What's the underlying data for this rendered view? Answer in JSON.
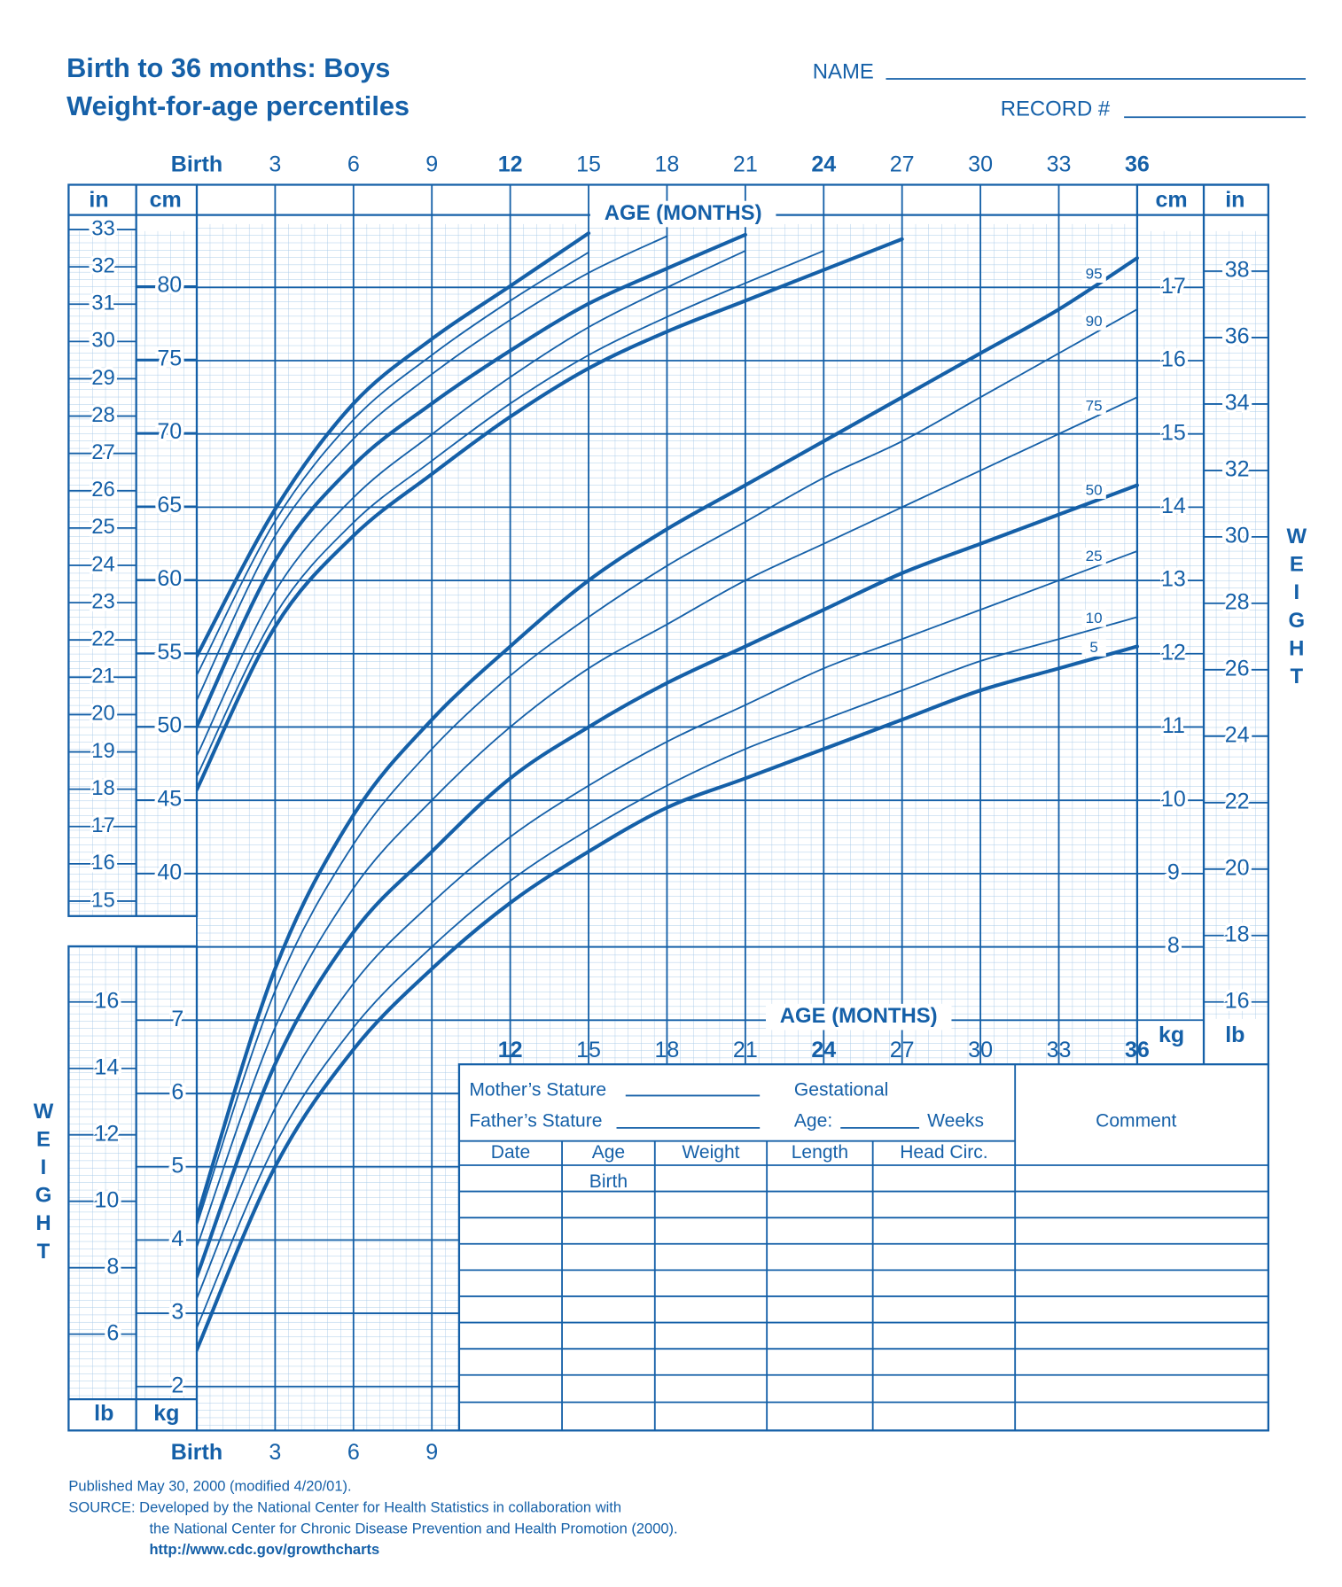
{
  "header": {
    "title": "Birth to 36 months: Boys",
    "subtitle": "Weight-for-age percentiles",
    "name": "NAME",
    "record": "RECORD #"
  },
  "units": {
    "in": "in",
    "cm": "cm",
    "kg": "kg",
    "lb": "lb"
  },
  "chart_data": [
    {
      "type": "line",
      "x_label": "AGE (MONTHS)",
      "y_label": "WEIGHT",
      "x": [
        0,
        3,
        6,
        9,
        12,
        15,
        18,
        21,
        24,
        27,
        30,
        33,
        36
      ],
      "xlim": [
        0,
        36
      ],
      "xticks": [
        {
          "value": 0,
          "label": "Birth"
        },
        3,
        6,
        9,
        12,
        15,
        18,
        21,
        24,
        27,
        30,
        33,
        36
      ],
      "ylim": [
        1.4,
        18.4
      ],
      "yticks": [
        2,
        3,
        4,
        5,
        6,
        7,
        8,
        9,
        10,
        11,
        12,
        13,
        14,
        15,
        16,
        17
      ],
      "y2lim": [
        3.1,
        40.6
      ],
      "y2ticks": [
        6,
        8,
        10,
        12,
        14,
        16,
        18,
        20,
        22,
        24,
        26,
        28,
        30,
        32,
        34,
        36,
        38
      ],
      "color": "#1560a8",
      "grid": true,
      "series": [
        {
          "name": "95",
          "values": [
            4.3,
            7.7,
            9.8,
            11.1,
            12.1,
            13.0,
            13.7,
            14.3,
            14.9,
            15.5,
            16.1,
            16.7,
            17.4
          ]
        },
        {
          "name": "90",
          "values": [
            4.2,
            7.4,
            9.4,
            10.7,
            11.7,
            12.5,
            13.2,
            13.8,
            14.4,
            14.9,
            15.5,
            16.1,
            16.7
          ]
        },
        {
          "name": "75",
          "values": [
            3.9,
            6.9,
            8.8,
            10.0,
            11.0,
            11.8,
            12.4,
            13.0,
            13.5,
            14.0,
            14.5,
            15.0,
            15.5
          ]
        },
        {
          "name": "50",
          "values": [
            3.5,
            6.4,
            8.2,
            9.3,
            10.3,
            11.0,
            11.6,
            12.1,
            12.6,
            13.1,
            13.5,
            13.9,
            14.3
          ]
        },
        {
          "name": "25",
          "values": [
            3.2,
            5.8,
            7.5,
            8.6,
            9.5,
            10.2,
            10.8,
            11.3,
            11.8,
            12.2,
            12.6,
            13.0,
            13.4
          ]
        },
        {
          "name": "10",
          "values": [
            2.8,
            5.3,
            6.9,
            8.0,
            8.9,
            9.6,
            10.2,
            10.7,
            11.1,
            11.5,
            11.9,
            12.2,
            12.5
          ]
        },
        {
          "name": "5",
          "values": [
            2.5,
            5.0,
            6.6,
            7.7,
            8.6,
            9.3,
            9.9,
            10.3,
            10.7,
            11.1,
            11.5,
            11.8,
            12.1
          ]
        }
      ]
    },
    {
      "type": "line",
      "x": [
        0,
        3,
        6,
        9,
        12,
        15,
        18,
        21,
        24,
        27,
        30,
        33,
        36
      ],
      "xlim": [
        0,
        36
      ],
      "ylim": [
        37.1,
        86.9
      ],
      "yticks": [
        40,
        45,
        50,
        55,
        60,
        65,
        70,
        75,
        80
      ],
      "y2lim": [
        14.6,
        34.2
      ],
      "y2ticks": [
        15,
        16,
        17,
        18,
        19,
        20,
        21,
        22,
        23,
        24,
        25,
        26,
        27,
        28,
        29,
        30,
        31,
        32,
        33
      ],
      "color": "#1560a8",
      "series": [
        {
          "values": [
            54.8,
            64.8,
            72.0,
            76.4,
            80.0,
            83.6,
            null,
            null,
            null,
            null,
            null,
            null,
            null
          ]
        },
        {
          "values": [
            53.5,
            64.0,
            70.9,
            75.3,
            79.0,
            82.3,
            null,
            null,
            null,
            null,
            null,
            null,
            null
          ]
        },
        {
          "values": [
            51.8,
            63.0,
            69.6,
            74.0,
            77.7,
            80.9,
            83.4,
            null,
            null,
            null,
            null,
            null,
            null
          ]
        },
        {
          "values": [
            50.0,
            61.3,
            67.8,
            72.0,
            75.6,
            78.8,
            81.2,
            83.5,
            null,
            null,
            null,
            null,
            null
          ]
        },
        {
          "values": [
            48.0,
            59.2,
            65.6,
            69.9,
            73.8,
            77.2,
            79.9,
            82.4,
            null,
            null,
            null,
            null,
            null
          ]
        },
        {
          "values": [
            46.6,
            57.6,
            63.9,
            68.1,
            72.0,
            75.3,
            77.9,
            80.2,
            82.4,
            null,
            null,
            null,
            null
          ]
        },
        {
          "values": [
            45.7,
            56.8,
            63.0,
            67.2,
            71.1,
            74.4,
            76.9,
            79.0,
            81.1,
            83.2,
            null,
            null,
            null
          ]
        }
      ]
    }
  ],
  "table": {
    "mother": "Mother’s Stature",
    "father": "Father’s Stature",
    "gestational": "Gestational",
    "age": "Age:",
    "weeks": "Weeks",
    "comment": "Comment",
    "columns": [
      "Date",
      "Age",
      "Weight",
      "Length",
      "Head  Circ."
    ],
    "birth": "Birth"
  },
  "footer": {
    "published": "Published May 30, 2000 (modified 4/20/01).",
    "source": "SOURCE: Developed by the National Center for Health Statistics in collaboration with",
    "source2": "the National Center for Chronic Disease Prevention and Health Promotion (2000).",
    "url": "http://www.cdc.gov/growthcharts"
  }
}
